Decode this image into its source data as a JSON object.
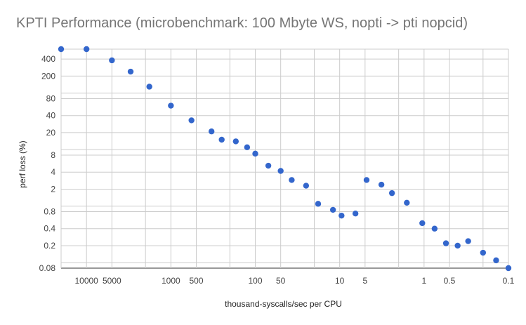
{
  "chart_data": {
    "type": "scatter",
    "title": "KPTI Performance (microbenchmark: 100 Mbyte WS, nopti -> pti nopcid)",
    "xlabel": "thousand-syscalls/sec per CPU",
    "ylabel": "perf loss (%)",
    "x_scale": "log",
    "x_reversed": true,
    "y_scale": "log",
    "xlim": [
      20000,
      0.1
    ],
    "ylim": [
      0.08,
      600
    ],
    "grid": true,
    "point_color": "#3366cc",
    "x_ticks": [
      {
        "value": 10000,
        "label": "10000"
      },
      {
        "value": 5000,
        "label": "5000"
      },
      {
        "value": 1000,
        "label": "1000"
      },
      {
        "value": 500,
        "label": "500"
      },
      {
        "value": 100,
        "label": "100"
      },
      {
        "value": 50,
        "label": "50"
      },
      {
        "value": 10,
        "label": "10"
      },
      {
        "value": 5,
        "label": "5"
      },
      {
        "value": 1,
        "label": "1"
      },
      {
        "value": 0.5,
        "label": "0.5"
      },
      {
        "value": 0.1,
        "label": "0.1"
      }
    ],
    "y_ticks": [
      {
        "value": 0.08,
        "label": "0.08"
      },
      {
        "value": 0.2,
        "label": "0.2"
      },
      {
        "value": 0.4,
        "label": "0.4"
      },
      {
        "value": 0.8,
        "label": "0.8"
      },
      {
        "value": 2,
        "label": "2"
      },
      {
        "value": 4,
        "label": "4"
      },
      {
        "value": 8,
        "label": "8"
      },
      {
        "value": 20,
        "label": "20"
      },
      {
        "value": 40,
        "label": "40"
      },
      {
        "value": 80,
        "label": "80"
      },
      {
        "value": 200,
        "label": "200"
      },
      {
        "value": 400,
        "label": "400"
      }
    ],
    "x_minor_grid": [
      20000,
      10000,
      5000,
      2000,
      1000,
      500,
      200,
      100,
      50,
      20,
      10,
      5,
      2,
      1,
      0.5,
      0.2,
      0.1
    ],
    "y_minor_grid": [
      0.08,
      0.1,
      0.2,
      0.4,
      0.8,
      1,
      2,
      4,
      8,
      10,
      20,
      40,
      80,
      100,
      200,
      400,
      600
    ],
    "points": [
      {
        "x": 20000,
        "y": 600
      },
      {
        "x": 10000,
        "y": 600
      },
      {
        "x": 5000,
        "y": 380
      },
      {
        "x": 3000,
        "y": 240
      },
      {
        "x": 1800,
        "y": 130
      },
      {
        "x": 1000,
        "y": 60
      },
      {
        "x": 570,
        "y": 33
      },
      {
        "x": 330,
        "y": 21
      },
      {
        "x": 250,
        "y": 15
      },
      {
        "x": 170,
        "y": 14
      },
      {
        "x": 125,
        "y": 11
      },
      {
        "x": 100,
        "y": 8.5
      },
      {
        "x": 70,
        "y": 5.2
      },
      {
        "x": 50,
        "y": 4.2
      },
      {
        "x": 37,
        "y": 2.9
      },
      {
        "x": 25,
        "y": 2.3
      },
      {
        "x": 18,
        "y": 1.1
      },
      {
        "x": 12,
        "y": 0.86
      },
      {
        "x": 9.5,
        "y": 0.68
      },
      {
        "x": 6.5,
        "y": 0.74
      },
      {
        "x": 4.8,
        "y": 2.9
      },
      {
        "x": 3.2,
        "y": 2.4
      },
      {
        "x": 2.4,
        "y": 1.7
      },
      {
        "x": 1.6,
        "y": 1.15
      },
      {
        "x": 1.05,
        "y": 0.5
      },
      {
        "x": 0.75,
        "y": 0.4
      },
      {
        "x": 0.55,
        "y": 0.22
      },
      {
        "x": 0.4,
        "y": 0.2
      },
      {
        "x": 0.3,
        "y": 0.24
      },
      {
        "x": 0.2,
        "y": 0.15
      },
      {
        "x": 0.14,
        "y": 0.11
      },
      {
        "x": 0.1,
        "y": 0.08
      }
    ]
  }
}
